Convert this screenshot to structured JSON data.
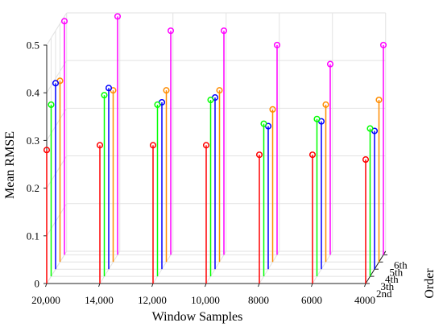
{
  "chart_data": {
    "type": "stem3d",
    "xlabel": "Window Samples",
    "ylabel": "Mean RMSE",
    "zlabel": "Order",
    "x_categories": [
      "20,000",
      "14,000",
      "12,000",
      "10,000",
      "8000",
      "6000",
      "4000"
    ],
    "order_categories": [
      "2nd",
      "3th",
      "4th",
      "5th",
      "6th"
    ],
    "y_ticks": [
      "0",
      "0.1",
      "0.2",
      "0.3",
      "0.4",
      "0.5"
    ],
    "ylim": [
      0,
      0.5
    ],
    "grid": true,
    "series": [
      {
        "name": "2nd",
        "color": "#ff0000",
        "values": [
          0.28,
          0.29,
          0.29,
          0.29,
          0.27,
          0.27,
          0.26
        ]
      },
      {
        "name": "3th",
        "color": "#00ff00",
        "values": [
          0.36,
          0.38,
          0.36,
          0.37,
          0.32,
          0.33,
          0.31
        ]
      },
      {
        "name": "4th",
        "color": "#0000ff",
        "values": [
          0.39,
          0.38,
          0.35,
          0.36,
          0.3,
          0.31,
          0.29
        ]
      },
      {
        "name": "5th",
        "color": "#ff8c00",
        "values": [
          0.38,
          0.36,
          0.36,
          0.36,
          0.32,
          0.33,
          0.34
        ]
      },
      {
        "name": "6th",
        "color": "#ff00ff",
        "values": [
          0.49,
          0.5,
          0.47,
          0.47,
          0.44,
          0.4,
          0.44
        ]
      }
    ]
  }
}
